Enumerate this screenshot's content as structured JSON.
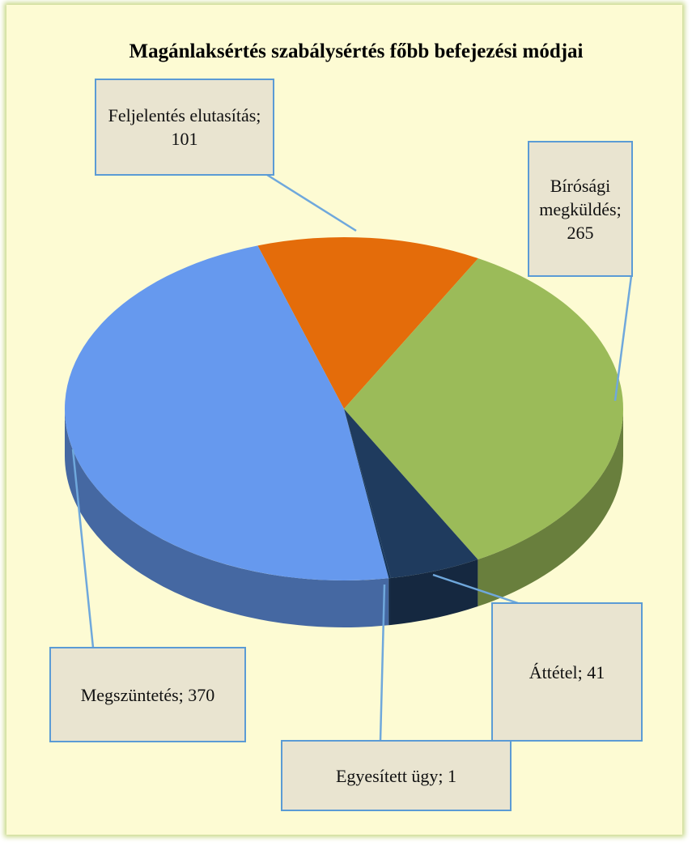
{
  "chart_data": {
    "type": "pie3d",
    "title": "Magánlaksértés szabálysértés főbb befejezési módjai",
    "values": [
      101,
      265,
      41,
      1,
      370
    ],
    "value_labels": [
      "Feljelentés elutasítás; 101",
      "Bírósági megküldés; 265",
      "Áttétel; 41",
      "Egyesített ügy; 1",
      "Megszüntetés; 370"
    ],
    "colors": [
      "#e46c0a",
      "#9bbb59",
      "#1f3b5e",
      "#17375e",
      "#6699ee"
    ]
  }
}
